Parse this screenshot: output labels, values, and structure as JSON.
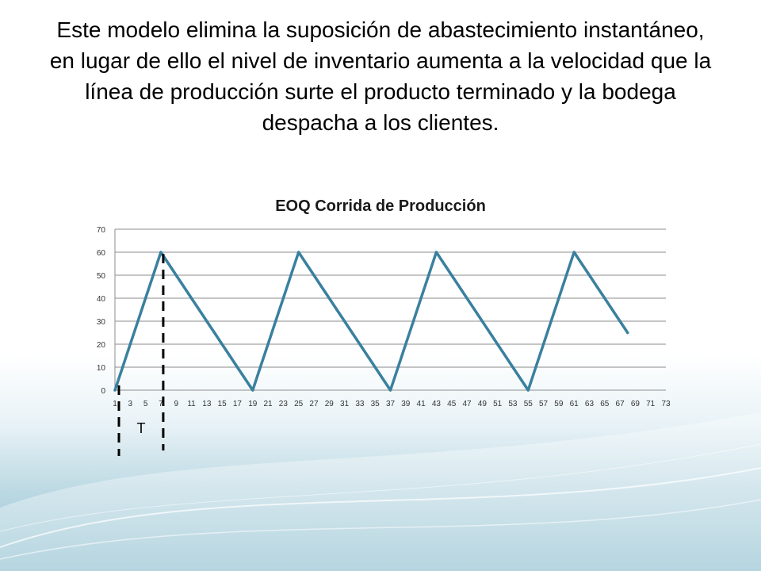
{
  "slide": {
    "text": "Este modelo elimina la suposición de abastecimiento instantáneo, en lugar de ello el nivel de inventario aumenta a la velocidad que la línea de producción surte el producto terminado y la bodega despacha a los clientes.",
    "colors": {
      "series": "#3a809f",
      "grid": "#8c8c8c",
      "annotation": "#000000"
    }
  },
  "chart_data": {
    "type": "line",
    "title": "EOQ Corrida de Producción",
    "xlabel": "",
    "ylabel": "",
    "ylim": [
      0,
      70
    ],
    "yticks": [
      0,
      10,
      20,
      30,
      40,
      50,
      60,
      70
    ],
    "xlim": [
      1,
      73
    ],
    "xticks": [
      1,
      3,
      5,
      7,
      9,
      11,
      13,
      15,
      17,
      19,
      21,
      23,
      25,
      27,
      29,
      31,
      33,
      35,
      37,
      39,
      41,
      43,
      45,
      47,
      49,
      51,
      53,
      55,
      57,
      59,
      61,
      63,
      65,
      67,
      69,
      71,
      73
    ],
    "grid": true,
    "legend": "none",
    "series": [
      {
        "x": [
          1,
          2,
          3,
          4,
          5,
          6,
          7,
          8,
          9,
          10,
          11,
          12,
          13,
          14,
          15,
          16,
          17,
          18,
          19,
          20,
          21,
          22,
          23,
          24,
          25,
          26,
          27,
          28,
          29,
          30,
          31,
          32,
          33,
          34,
          35,
          36,
          37,
          38,
          39,
          40,
          41,
          42,
          43,
          44,
          45,
          46,
          47,
          48,
          49,
          50,
          51,
          52,
          53,
          54,
          55,
          56,
          57,
          58,
          59,
          60,
          61,
          62,
          63,
          64,
          65,
          66,
          67,
          68
        ],
        "values": [
          0,
          10,
          20,
          30,
          40,
          50,
          60,
          55,
          50,
          45,
          40,
          35,
          30,
          25,
          20,
          15,
          10,
          5,
          0,
          10,
          20,
          30,
          40,
          50,
          60,
          55,
          50,
          45,
          40,
          35,
          30,
          25,
          20,
          15,
          10,
          5,
          0,
          10,
          20,
          30,
          40,
          50,
          60,
          55,
          50,
          45,
          40,
          35,
          30,
          25,
          20,
          15,
          10,
          5,
          0,
          10,
          20,
          30,
          40,
          50,
          60,
          55,
          50,
          45,
          40,
          35,
          30,
          25
        ]
      }
    ],
    "annotations": [
      {
        "label": "T",
        "from_x": 1,
        "to_x": 7
      }
    ]
  }
}
